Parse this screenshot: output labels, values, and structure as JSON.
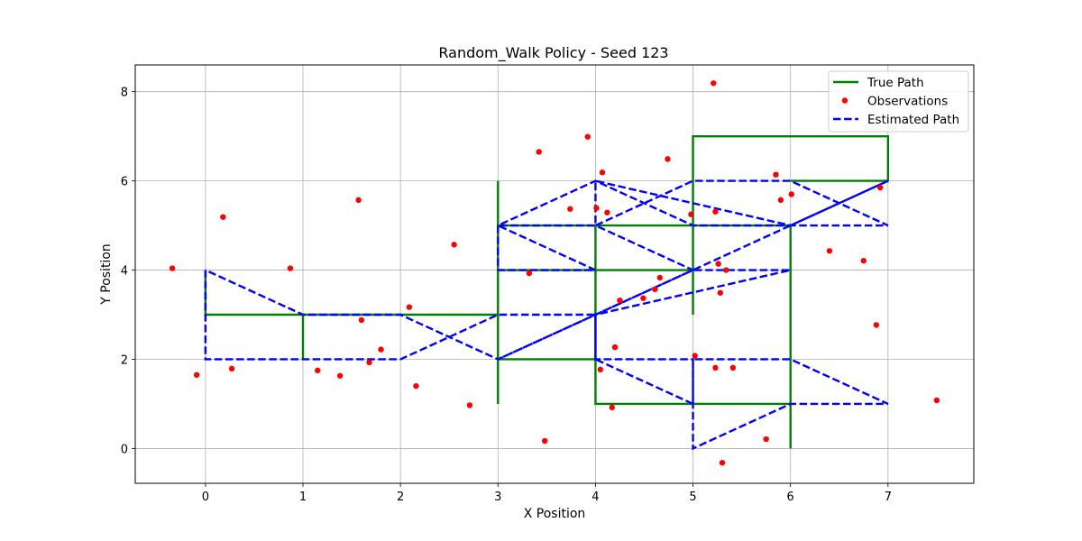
{
  "chart_data": {
    "type": "line",
    "title": "Random_Walk Policy - Seed 123",
    "xlabel": "X Position",
    "ylabel": "Y Position",
    "xlim": [
      -0.72,
      7.88
    ],
    "ylim": [
      -0.78,
      8.6
    ],
    "xticks": [
      0,
      1,
      2,
      3,
      4,
      5,
      6,
      7
    ],
    "yticks": [
      0,
      2,
      4,
      6,
      8
    ],
    "grid": true,
    "legend_position": "top-right",
    "series": [
      {
        "name": "True Path",
        "style": "line",
        "color": "#008000",
        "points": [
          [
            0,
            4
          ],
          [
            0,
            3
          ],
          [
            1,
            3
          ],
          [
            1,
            2
          ],
          [
            1,
            3
          ],
          [
            2,
            3
          ],
          [
            3,
            3
          ],
          [
            3,
            2
          ],
          [
            3,
            1
          ],
          [
            3,
            6
          ],
          [
            3,
            5
          ],
          [
            4,
            5
          ],
          [
            4,
            4
          ],
          [
            3,
            4
          ],
          [
            4,
            4
          ],
          [
            5,
            4
          ],
          [
            5,
            3
          ],
          [
            5,
            5
          ],
          [
            4,
            5
          ],
          [
            4,
            2
          ],
          [
            3,
            2
          ],
          [
            4,
            2
          ],
          [
            4,
            1
          ],
          [
            5,
            1
          ],
          [
            6,
            1
          ],
          [
            6,
            0
          ],
          [
            6,
            1
          ],
          [
            6,
            5
          ],
          [
            5,
            5
          ],
          [
            5,
            7
          ],
          [
            7,
            7
          ],
          [
            7,
            6
          ],
          [
            6,
            6
          ]
        ]
      },
      {
        "name": "Observations",
        "style": "scatter",
        "color": "#ff0000",
        "points": [
          [
            -0.34,
            4.04
          ],
          [
            -0.09,
            1.65
          ],
          [
            0.18,
            5.19
          ],
          [
            0.27,
            1.79
          ],
          [
            0.87,
            4.04
          ],
          [
            1.15,
            1.75
          ],
          [
            1.38,
            1.63
          ],
          [
            1.57,
            5.57
          ],
          [
            1.6,
            2.88
          ],
          [
            1.68,
            1.93
          ],
          [
            1.8,
            2.22
          ],
          [
            2.09,
            3.17
          ],
          [
            2.16,
            1.4
          ],
          [
            2.55,
            4.57
          ],
          [
            2.71,
            0.97
          ],
          [
            3.32,
            3.93
          ],
          [
            3.42,
            6.65
          ],
          [
            3.48,
            0.17
          ],
          [
            3.74,
            5.37
          ],
          [
            3.92,
            6.99
          ],
          [
            4.01,
            5.39
          ],
          [
            4.05,
            1.77
          ],
          [
            4.07,
            6.19
          ],
          [
            4.12,
            5.29
          ],
          [
            4.17,
            0.92
          ],
          [
            4.2,
            2.27
          ],
          [
            4.25,
            3.32
          ],
          [
            4.49,
            3.37
          ],
          [
            4.61,
            3.57
          ],
          [
            4.66,
            3.83
          ],
          [
            4.74,
            6.49
          ],
          [
            4.98,
            5.25
          ],
          [
            5.02,
            2.08
          ],
          [
            5.21,
            8.19
          ],
          [
            5.23,
            1.81
          ],
          [
            5.23,
            5.31
          ],
          [
            5.26,
            4.14
          ],
          [
            5.28,
            3.49
          ],
          [
            5.3,
            -0.32
          ],
          [
            5.34,
            4.0
          ],
          [
            5.41,
            1.81
          ],
          [
            5.75,
            0.21
          ],
          [
            5.85,
            6.14
          ],
          [
            5.9,
            5.57
          ],
          [
            6.01,
            5.7
          ],
          [
            6.4,
            4.43
          ],
          [
            6.75,
            4.21
          ],
          [
            6.88,
            2.77
          ],
          [
            6.92,
            5.85
          ],
          [
            7.5,
            1.08
          ]
        ]
      },
      {
        "name": "Estimated Path",
        "style": "dashed",
        "color": "#0000ff",
        "points": [
          [
            0,
            4
          ],
          [
            0,
            2
          ],
          [
            1,
            2
          ],
          [
            2,
            2
          ],
          [
            3,
            3
          ],
          [
            4,
            3
          ],
          [
            4,
            2
          ],
          [
            5,
            1
          ],
          [
            5,
            2
          ],
          [
            6,
            2
          ],
          [
            7,
            1
          ],
          [
            6,
            1
          ],
          [
            5,
            0
          ],
          [
            5,
            2
          ],
          [
            4,
            2
          ],
          [
            4,
            3
          ],
          [
            6,
            4
          ],
          [
            5,
            4
          ],
          [
            3,
            2
          ],
          [
            5,
            4
          ],
          [
            4,
            5
          ],
          [
            5,
            6
          ],
          [
            6,
            6
          ],
          [
            7,
            5
          ],
          [
            6,
            5
          ],
          [
            4,
            6
          ],
          [
            4,
            5
          ],
          [
            3,
            5
          ],
          [
            4,
            4
          ],
          [
            3,
            4
          ],
          [
            3,
            5
          ],
          [
            4,
            6
          ],
          [
            5,
            5
          ],
          [
            6,
            5
          ],
          [
            7,
            6
          ],
          [
            4,
            3
          ],
          [
            3,
            2
          ],
          [
            2,
            3
          ],
          [
            1,
            3
          ],
          [
            0,
            4
          ]
        ]
      }
    ]
  }
}
